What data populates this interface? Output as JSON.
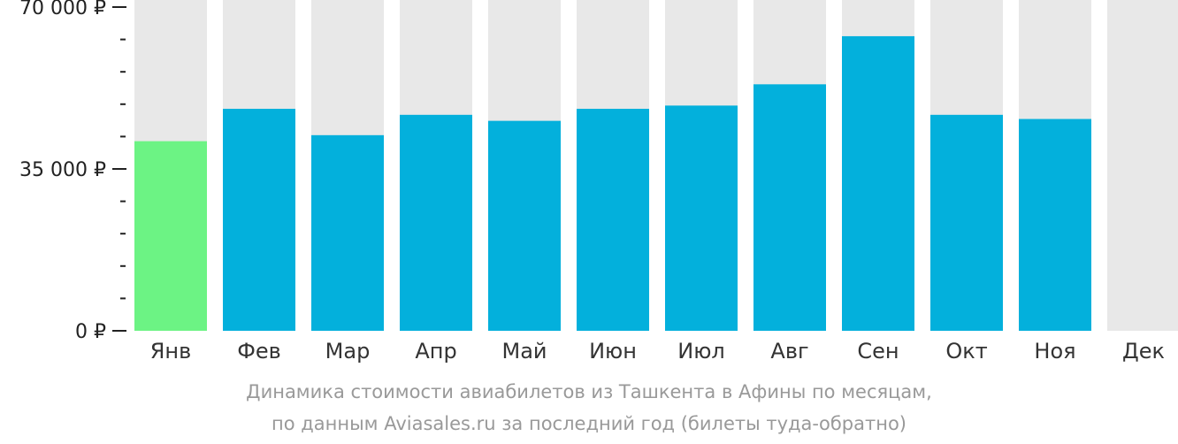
{
  "chart_data": {
    "type": "bar",
    "categories": [
      "Янв",
      "Фев",
      "Мар",
      "Апр",
      "Май",
      "Июн",
      "Июл",
      "Авг",
      "Сен",
      "Окт",
      "Ноя",
      "Дек"
    ],
    "values": [
      41000,
      48000,
      42300,
      46700,
      45400,
      48000,
      48700,
      53300,
      63700,
      46700,
      45800,
      null
    ],
    "ylim": [
      0,
      70000
    ],
    "yticks": [
      {
        "value": 0,
        "label": "0 ₽"
      },
      {
        "value": 35000,
        "label": "35 000 ₽"
      },
      {
        "value": 70000,
        "label": "70 000 ₽"
      }
    ],
    "minor_tick_step": 7000,
    "highlight_index": 0,
    "colors": {
      "bar": "#03b0dc",
      "highlight": "#6cf384",
      "background_bar": "#e8e8e8",
      "axis": "#222222"
    },
    "grid": false,
    "legend": "none"
  },
  "caption": {
    "line1": "Динамика стоимости авиабилетов из Ташкента в Афины по месяцам,",
    "line2": "по данным Aviasales.ru за последний год (билеты туда-обратно)"
  }
}
